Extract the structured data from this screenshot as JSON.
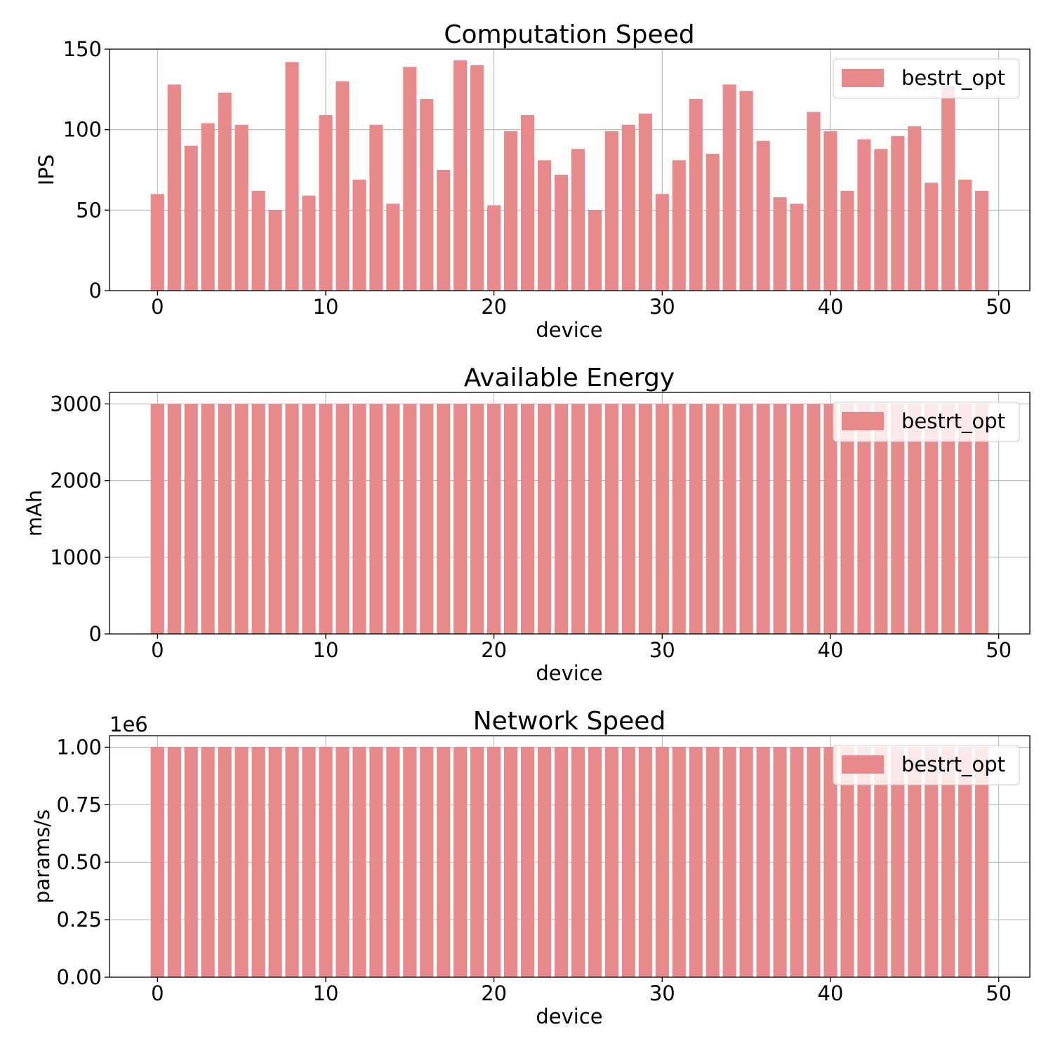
{
  "colors": {
    "bar": "#e88a8b",
    "grid": "#b0b0b0",
    "axis": "#000000",
    "legend_border": "#cccccc"
  },
  "chart_data": [
    {
      "type": "bar",
      "title": "Computation Speed",
      "xlabel": "device",
      "ylabel": "IPS",
      "legend": [
        "bestrt_opt"
      ],
      "legend_position": "top-right",
      "grid": true,
      "xlim": [
        -2.85,
        51.85
      ],
      "ylim": [
        0,
        150
      ],
      "xticks": [
        0,
        10,
        20,
        30,
        40,
        50
      ],
      "xtick_labels": [
        "0",
        "10",
        "20",
        "30",
        "40",
        "50"
      ],
      "yticks": [
        0,
        50,
        100,
        150
      ],
      "ytick_labels": [
        "0",
        "50",
        "100",
        "150"
      ],
      "offset_label": "",
      "series": [
        {
          "name": "bestrt_opt",
          "x": [
            0,
            1,
            2,
            3,
            4,
            5,
            6,
            7,
            8,
            9,
            10,
            11,
            12,
            13,
            14,
            15,
            16,
            17,
            18,
            19,
            20,
            21,
            22,
            23,
            24,
            25,
            26,
            27,
            28,
            29,
            30,
            31,
            32,
            33,
            34,
            35,
            36,
            37,
            38,
            39,
            40,
            41,
            42,
            43,
            44,
            45,
            46,
            47,
            48,
            49
          ],
          "values": [
            60,
            128,
            90,
            104,
            123,
            103,
            62,
            50,
            142,
            59,
            109,
            130,
            69,
            103,
            54,
            139,
            119,
            75,
            143,
            140,
            53,
            99,
            109,
            81,
            72,
            88,
            50,
            99,
            103,
            110,
            60,
            81,
            119,
            85,
            128,
            124,
            93,
            58,
            54,
            111,
            99,
            62,
            94,
            88,
            96,
            102,
            67,
            127,
            69,
            62
          ]
        }
      ]
    },
    {
      "type": "bar",
      "title": "Available Energy",
      "xlabel": "device",
      "ylabel": "mAh",
      "legend": [
        "bestrt_opt"
      ],
      "legend_position": "top-right",
      "grid": true,
      "xlim": [
        -2.85,
        51.85
      ],
      "ylim": [
        0,
        3150
      ],
      "xticks": [
        0,
        10,
        20,
        30,
        40,
        50
      ],
      "xtick_labels": [
        "0",
        "10",
        "20",
        "30",
        "40",
        "50"
      ],
      "yticks": [
        0,
        1000,
        2000,
        3000
      ],
      "ytick_labels": [
        "0",
        "1000",
        "2000",
        "3000"
      ],
      "offset_label": "",
      "series": [
        {
          "name": "bestrt_opt",
          "x": [
            0,
            1,
            2,
            3,
            4,
            5,
            6,
            7,
            8,
            9,
            10,
            11,
            12,
            13,
            14,
            15,
            16,
            17,
            18,
            19,
            20,
            21,
            22,
            23,
            24,
            25,
            26,
            27,
            28,
            29,
            30,
            31,
            32,
            33,
            34,
            35,
            36,
            37,
            38,
            39,
            40,
            41,
            42,
            43,
            44,
            45,
            46,
            47,
            48,
            49
          ],
          "values": [
            3000,
            3000,
            3000,
            3000,
            3000,
            3000,
            3000,
            3000,
            3000,
            3000,
            3000,
            3000,
            3000,
            3000,
            3000,
            3000,
            3000,
            3000,
            3000,
            3000,
            3000,
            3000,
            3000,
            3000,
            3000,
            3000,
            3000,
            3000,
            3000,
            3000,
            3000,
            3000,
            3000,
            3000,
            3000,
            3000,
            3000,
            3000,
            3000,
            3000,
            3000,
            3000,
            3000,
            3000,
            3000,
            3000,
            3000,
            3000,
            3000,
            3000
          ]
        }
      ]
    },
    {
      "type": "bar",
      "title": "Network Speed",
      "xlabel": "device",
      "ylabel": "params/s",
      "legend": [
        "bestrt_opt"
      ],
      "legend_position": "top-right",
      "grid": true,
      "xlim": [
        -2.85,
        51.85
      ],
      "ylim": [
        0,
        1050000
      ],
      "xticks": [
        0,
        10,
        20,
        30,
        40,
        50
      ],
      "xtick_labels": [
        "0",
        "10",
        "20",
        "30",
        "40",
        "50"
      ],
      "yticks": [
        0,
        250000,
        500000,
        750000,
        1000000
      ],
      "ytick_labels": [
        "0.00",
        "0.25",
        "0.50",
        "0.75",
        "1.00"
      ],
      "offset_label": "1e6",
      "series": [
        {
          "name": "bestrt_opt",
          "x": [
            0,
            1,
            2,
            3,
            4,
            5,
            6,
            7,
            8,
            9,
            10,
            11,
            12,
            13,
            14,
            15,
            16,
            17,
            18,
            19,
            20,
            21,
            22,
            23,
            24,
            25,
            26,
            27,
            28,
            29,
            30,
            31,
            32,
            33,
            34,
            35,
            36,
            37,
            38,
            39,
            40,
            41,
            42,
            43,
            44,
            45,
            46,
            47,
            48,
            49
          ],
          "values": [
            1000000,
            1000000,
            1000000,
            1000000,
            1000000,
            1000000,
            1000000,
            1000000,
            1000000,
            1000000,
            1000000,
            1000000,
            1000000,
            1000000,
            1000000,
            1000000,
            1000000,
            1000000,
            1000000,
            1000000,
            1000000,
            1000000,
            1000000,
            1000000,
            1000000,
            1000000,
            1000000,
            1000000,
            1000000,
            1000000,
            1000000,
            1000000,
            1000000,
            1000000,
            1000000,
            1000000,
            1000000,
            1000000,
            1000000,
            1000000,
            1000000,
            1000000,
            1000000,
            1000000,
            1000000,
            1000000,
            1000000,
            1000000,
            1000000,
            1000000
          ]
        }
      ]
    }
  ]
}
